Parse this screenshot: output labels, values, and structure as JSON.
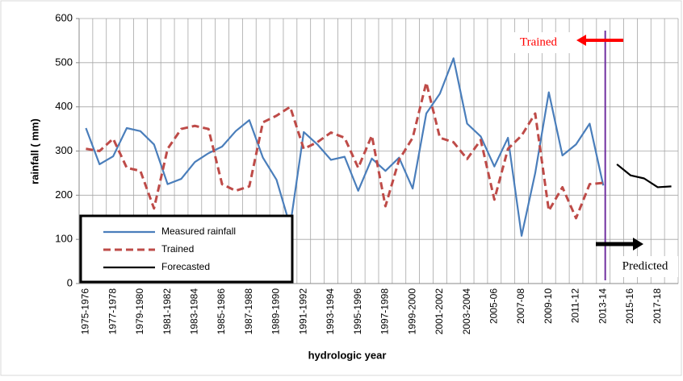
{
  "chart_data": {
    "type": "line",
    "x_label": "hydrologic year",
    "y_label": "rainfall ( mm)",
    "categories": [
      "1975-1976",
      null,
      "1977-1978",
      null,
      "1979-1980",
      null,
      "1981-1982",
      null,
      "1983-1984",
      null,
      "1985-1986",
      null,
      "1987-1988",
      null,
      "1989-1990",
      null,
      "1991-1992",
      null,
      "1993-1994",
      null,
      "1995-1996",
      null,
      "1997-1998",
      null,
      "1999-2000",
      null,
      "2001-2002",
      null,
      "2003-2004",
      null,
      "2005-06",
      null,
      "2007-08",
      null,
      "2009-10",
      null,
      "2011-12",
      null,
      "2013-14",
      null,
      "2015-16",
      null,
      "2017-18",
      null
    ],
    "series": [
      {
        "name": "Measured rainfall",
        "color": "#4a7ebb",
        "dashed": false,
        "values": [
          352,
          270,
          288,
          352,
          345,
          315,
          225,
          237,
          275,
          295,
          310,
          345,
          370,
          285,
          235,
          130,
          343,
          315,
          280,
          287,
          210,
          283,
          255,
          285,
          215,
          385,
          430,
          510,
          362,
          333,
          265,
          330,
          108,
          250,
          433,
          290,
          315,
          362,
          222,
          null,
          null,
          null,
          null,
          null
        ]
      },
      {
        "name": "Trained",
        "color": "#be4b48",
        "dashed": true,
        "values": [
          305,
          300,
          328,
          262,
          255,
          170,
          305,
          350,
          357,
          350,
          225,
          210,
          220,
          365,
          380,
          400,
          305,
          320,
          342,
          330,
          262,
          335,
          175,
          280,
          330,
          455,
          330,
          320,
          282,
          325,
          190,
          305,
          335,
          385,
          165,
          218,
          148,
          225,
          228,
          null,
          null,
          null,
          null,
          null
        ]
      },
      {
        "name": "Forecasted",
        "color": "#000000",
        "dashed": false,
        "values": [
          null,
          null,
          null,
          null,
          null,
          null,
          null,
          null,
          null,
          null,
          null,
          null,
          null,
          null,
          null,
          null,
          null,
          null,
          null,
          null,
          null,
          null,
          null,
          null,
          null,
          null,
          null,
          null,
          null,
          null,
          null,
          null,
          null,
          null,
          null,
          null,
          null,
          null,
          null,
          270,
          245,
          238,
          218,
          220
        ]
      }
    ],
    "ylim": [
      0,
      600
    ],
    "yticks": [
      0,
      100,
      200,
      300,
      400,
      500,
      600
    ],
    "grid": true,
    "legend": "lower left",
    "annotations": [
      {
        "text": "Trained",
        "color": "#ff0000"
      },
      {
        "text": "Predicted",
        "color": "#000000"
      }
    ]
  }
}
